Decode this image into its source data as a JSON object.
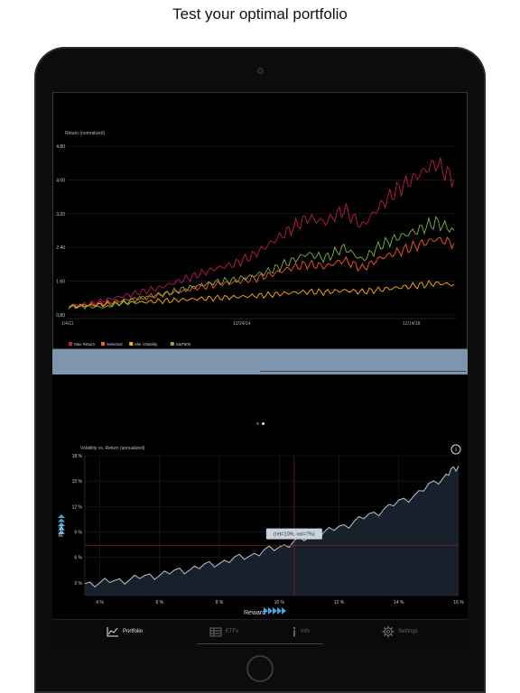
{
  "headline": "Test your optimal portfolio",
  "top_chart": {
    "title": "Return (normalized)",
    "y_ticks": [
      "4.80",
      "4.00",
      "3.20",
      "2.40",
      "1.60",
      "0.80"
    ],
    "x_ticks": [
      "1/4/11",
      "12/24/14",
      "12/14/18"
    ],
    "legend": [
      {
        "label": "Max Return",
        "color": "#c2185b"
      },
      {
        "label": "Selected",
        "color": "#ff5722"
      },
      {
        "label": "Min Volatility",
        "color": "#ffb300"
      },
      {
        "label": "S&P500",
        "color": "#7cb342"
      }
    ]
  },
  "page_dots": {
    "count": 2,
    "active": 1
  },
  "bottom_chart": {
    "title": "Volatility vs. Return (annualized)",
    "y_ticks": [
      "18 %",
      "15 %",
      "12 %",
      "9 %",
      "6 %",
      "3 %"
    ],
    "x_ticks": [
      "4 %",
      "6 %",
      "8 %",
      "10 %",
      "12 %",
      "14 %",
      "16 %"
    ],
    "tooltip": "(ret=10%, vol=7%)",
    "y_axis_label": "Risk",
    "x_axis_label": "Reward",
    "info_glyph": "i"
  },
  "tabs": [
    {
      "label": "Portfolio",
      "icon": "chart-icon",
      "active": true
    },
    {
      "label": "ETFs",
      "icon": "table-icon",
      "active": false
    },
    {
      "label": "Info",
      "icon": "info-icon",
      "active": false
    },
    {
      "label": "Settings",
      "icon": "gear-icon",
      "active": false
    }
  ],
  "chart_data": [
    {
      "type": "line",
      "title": "Return (normalized)",
      "x_tick_labels": [
        "1/4/11",
        "12/24/14",
        "12/14/18"
      ],
      "ylim": [
        0.8,
        4.8
      ],
      "legend_position": "bottom-left",
      "series": [
        {
          "name": "Max Return",
          "color": "#c2185b",
          "values": [
            1.0,
            1.05,
            1.15,
            1.25,
            1.35,
            1.45,
            1.6,
            1.75,
            1.9,
            2.0,
            2.2,
            2.5,
            2.8,
            3.1,
            3.0,
            3.3,
            2.9,
            3.4,
            3.8,
            4.1,
            4.4,
            4.0
          ]
        },
        {
          "name": "Selected",
          "color": "#ff5722",
          "values": [
            1.0,
            1.03,
            1.08,
            1.15,
            1.2,
            1.28,
            1.35,
            1.45,
            1.52,
            1.58,
            1.65,
            1.75,
            1.9,
            2.0,
            1.95,
            2.1,
            1.9,
            2.15,
            2.3,
            2.45,
            2.6,
            2.5
          ]
        },
        {
          "name": "Min Volatility",
          "color": "#ffb300",
          "values": [
            1.0,
            1.02,
            1.05,
            1.08,
            1.1,
            1.13,
            1.15,
            1.18,
            1.2,
            1.22,
            1.25,
            1.28,
            1.32,
            1.35,
            1.34,
            1.38,
            1.35,
            1.4,
            1.45,
            1.5,
            1.55,
            1.52
          ]
        },
        {
          "name": "S&P500",
          "color": "#7cb342",
          "values": [
            1.0,
            1.0,
            0.98,
            1.1,
            1.2,
            1.28,
            1.38,
            1.48,
            1.58,
            1.62,
            1.72,
            1.85,
            2.05,
            2.25,
            2.15,
            2.4,
            2.1,
            2.45,
            2.65,
            2.8,
            3.0,
            2.8
          ]
        }
      ]
    },
    {
      "type": "area",
      "title": "Volatility vs. Return (annualized)",
      "xlabel": "Reward",
      "ylabel": "Risk",
      "xlim": [
        3.5,
        16.0
      ],
      "ylim": [
        1.5,
        18.0
      ],
      "grid": true,
      "x": [
        3.5,
        4.5,
        5.5,
        6.5,
        7.5,
        8.5,
        9.5,
        10.5,
        11.5,
        12.5,
        13.5,
        14.5,
        15.5,
        16.0
      ],
      "values": [
        2.9,
        3.2,
        3.7,
        4.3,
        5.0,
        5.8,
        6.7,
        7.8,
        8.9,
        10.2,
        11.7,
        13.3,
        15.5,
        16.8
      ],
      "annotation": {
        "x": 10.5,
        "y": 7.4,
        "text": "(ret=10%, vol=7%)"
      }
    }
  ]
}
